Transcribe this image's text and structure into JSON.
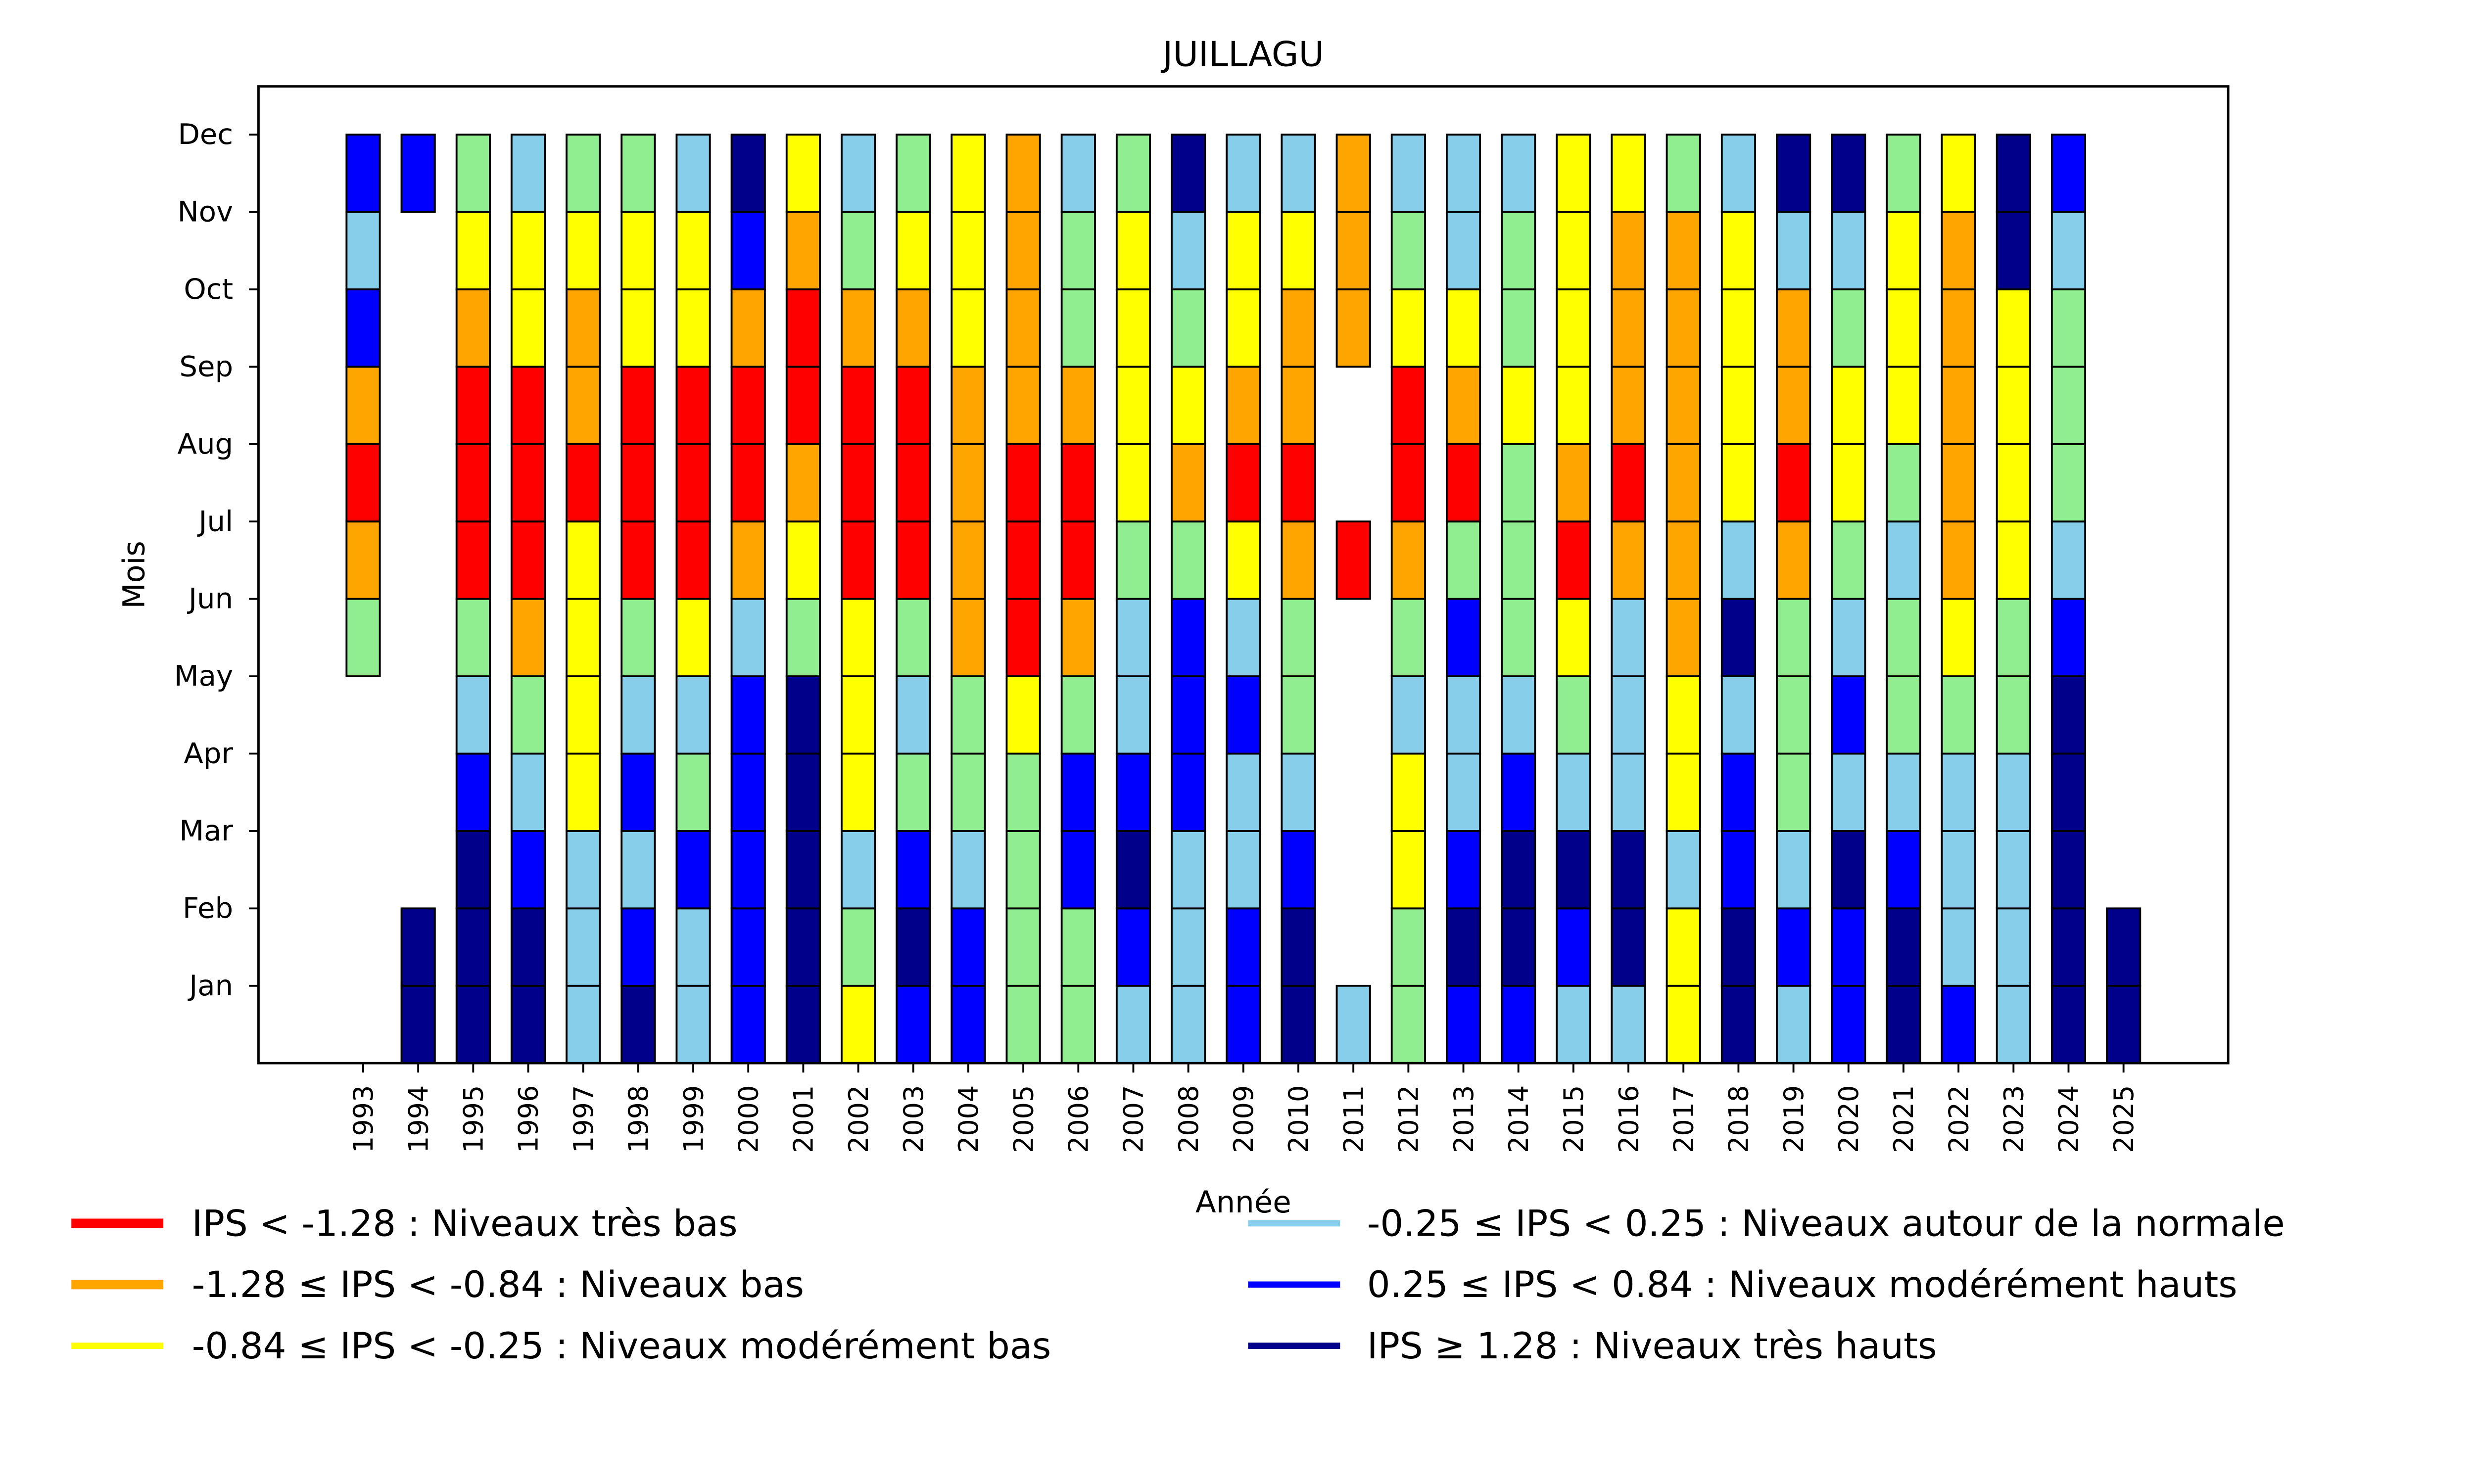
{
  "chart_data": {
    "type": "heatmap",
    "title": "JUILLAGU",
    "xlabel": "Année",
    "ylabel": "Mois",
    "months": [
      "Jan",
      "Feb",
      "Mar",
      "Apr",
      "May",
      "Jun",
      "Jul",
      "Aug",
      "Sep",
      "Oct",
      "Nov",
      "Dec"
    ],
    "years": [
      "1993",
      "1994",
      "1995",
      "1996",
      "1997",
      "1998",
      "1999",
      "2000",
      "2001",
      "2002",
      "2003",
      "2004",
      "2005",
      "2006",
      "2007",
      "2008",
      "2009",
      "2010",
      "2011",
      "2012",
      "2013",
      "2014",
      "2015",
      "2016",
      "2017",
      "2018",
      "2019",
      "2020",
      "2021",
      "2022",
      "2023",
      "2024",
      "2025"
    ],
    "categories": {
      "R": {
        "color": "#ff0000",
        "label": "IPS < -1.28 : Niveaux très bas"
      },
      "O": {
        "color": "#ffa500",
        "label": "-1.28 ≤ IPS < -0.84 : Niveaux bas"
      },
      "Y": {
        "color": "#ffff00",
        "label": "-0.84 ≤ IPS < -0.25 : Niveaux modérément bas"
      },
      "L": {
        "color": "#87ceeb",
        "label": "-0.25 ≤ IPS < 0.25 : Niveaux autour de la normale"
      },
      "G": {
        "color": "#90ee90",
        "label": ""
      },
      "B": {
        "color": "#0000ff",
        "label": "0.25 ≤ IPS < 0.84 : Niveaux modérément hauts"
      },
      "N": {
        "color": "#00008b",
        "label": "IPS ≥ 1.28 : Niveaux très hauts"
      }
    },
    "legend": {
      "placement": "bottom",
      "left": [
        {
          "key": "R",
          "label": "IPS < -1.28 : Niveaux très bas",
          "color": "#ff0000"
        },
        {
          "key": "O",
          "label": "-1.28 ≤ IPS < -0.84 : Niveaux bas",
          "color": "#ffa500"
        },
        {
          "key": "Y",
          "label": "-0.84 ≤ IPS < -0.25 : Niveaux modérément bas",
          "color": "#ffff00"
        }
      ],
      "right": [
        {
          "key": "L",
          "label": "-0.25 ≤ IPS < 0.25 : Niveaux autour de la normale",
          "color": "#87ceeb"
        },
        {
          "key": "B",
          "label": "0.25 ≤ IPS < 0.84 : Niveaux modérément hauts",
          "color": "#0000ff"
        },
        {
          "key": "N",
          "label": "IPS ≥ 1.28 : Niveaux très hauts",
          "color": "#00008b"
        }
      ]
    },
    "values_note": "Per year, 12 entries Jan..Dec; null = no data",
    "values": {
      "1993": [
        null,
        null,
        null,
        null,
        null,
        "G",
        "O",
        "R",
        "O",
        "B",
        "L",
        "B"
      ],
      "1994": [
        "N",
        "N",
        null,
        null,
        null,
        null,
        null,
        null,
        null,
        null,
        null,
        "B"
      ],
      "1995": [
        "N",
        "N",
        "N",
        "B",
        "L",
        "G",
        "R",
        "R",
        "R",
        "O",
        "Y",
        "G"
      ],
      "1996": [
        "N",
        "N",
        "B",
        "L",
        "G",
        "O",
        "R",
        "R",
        "R",
        "Y",
        "Y",
        "L"
      ],
      "1997": [
        "L",
        "L",
        "L",
        "Y",
        "Y",
        "Y",
        "Y",
        "R",
        "O",
        "O",
        "Y",
        "G"
      ],
      "1998": [
        "N",
        "B",
        "L",
        "B",
        "L",
        "G",
        "R",
        "R",
        "R",
        "Y",
        "Y",
        "G"
      ],
      "1999": [
        "L",
        "L",
        "B",
        "G",
        "L",
        "Y",
        "R",
        "R",
        "R",
        "Y",
        "Y",
        "L"
      ],
      "2000": [
        "B",
        "B",
        "B",
        "B",
        "B",
        "L",
        "O",
        "R",
        "R",
        "O",
        "B",
        "N"
      ],
      "2001": [
        "N",
        "N",
        "N",
        "N",
        "N",
        "G",
        "Y",
        "O",
        "R",
        "R",
        "O",
        "Y"
      ],
      "2002": [
        "Y",
        "G",
        "L",
        "Y",
        "Y",
        "Y",
        "R",
        "R",
        "R",
        "O",
        "G",
        "L"
      ],
      "2003": [
        "B",
        "N",
        "B",
        "G",
        "L",
        "G",
        "R",
        "R",
        "R",
        "O",
        "Y",
        "G"
      ],
      "2004": [
        "B",
        "B",
        "L",
        "G",
        "G",
        "O",
        "O",
        "O",
        "O",
        "Y",
        "Y",
        "Y"
      ],
      "2005": [
        "G",
        "G",
        "G",
        "G",
        "Y",
        "R",
        "R",
        "R",
        "O",
        "O",
        "O",
        "O"
      ],
      "2006": [
        "G",
        "G",
        "B",
        "B",
        "G",
        "O",
        "R",
        "R",
        "O",
        "G",
        "G",
        "L"
      ],
      "2007": [
        "L",
        "B",
        "N",
        "B",
        "L",
        "L",
        "G",
        "Y",
        "Y",
        "Y",
        "Y",
        "G"
      ],
      "2008": [
        "L",
        "L",
        "L",
        "B",
        "B",
        "B",
        "G",
        "O",
        "Y",
        "G",
        "L",
        "N"
      ],
      "2009": [
        "B",
        "B",
        "L",
        "L",
        "B",
        "L",
        "Y",
        "R",
        "O",
        "Y",
        "Y",
        "L"
      ],
      "2010": [
        "N",
        "N",
        "B",
        "L",
        "G",
        "G",
        "O",
        "R",
        "O",
        "O",
        "Y",
        "L"
      ],
      "2011": [
        "L",
        null,
        null,
        null,
        null,
        null,
        "R",
        null,
        null,
        "O",
        "O",
        "O"
      ],
      "2012": [
        "G",
        "G",
        "Y",
        "Y",
        "L",
        "G",
        "O",
        "R",
        "R",
        "Y",
        "G",
        "L"
      ],
      "2013": [
        "B",
        "N",
        "B",
        "L",
        "L",
        "B",
        "G",
        "R",
        "O",
        "Y",
        "L",
        "L"
      ],
      "2014": [
        "B",
        "N",
        "N",
        "B",
        "L",
        "G",
        "G",
        "G",
        "Y",
        "G",
        "G",
        "L"
      ],
      "2015": [
        "L",
        "B",
        "N",
        "L",
        "G",
        "Y",
        "R",
        "O",
        "Y",
        "Y",
        "Y",
        "Y"
      ],
      "2016": [
        "L",
        "N",
        "N",
        "L",
        "L",
        "L",
        "O",
        "R",
        "O",
        "O",
        "O",
        "Y"
      ],
      "2017": [
        "Y",
        "Y",
        "L",
        "Y",
        "Y",
        "O",
        "O",
        "O",
        "O",
        "O",
        "O",
        "G"
      ],
      "2018": [
        "N",
        "N",
        "B",
        "B",
        "L",
        "N",
        "L",
        "Y",
        "Y",
        "Y",
        "Y",
        "L"
      ],
      "2019": [
        "L",
        "B",
        "L",
        "G",
        "G",
        "G",
        "O",
        "R",
        "O",
        "O",
        "L",
        "N"
      ],
      "2020": [
        "B",
        "B",
        "N",
        "L",
        "B",
        "L",
        "G",
        "Y",
        "Y",
        "G",
        "L",
        "N"
      ],
      "2021": [
        "N",
        "N",
        "B",
        "L",
        "G",
        "G",
        "L",
        "G",
        "Y",
        "Y",
        "Y",
        "G"
      ],
      "2022": [
        "B",
        "L",
        "L",
        "L",
        "G",
        "Y",
        "O",
        "O",
        "O",
        "O",
        "O",
        "Y"
      ],
      "2023": [
        "L",
        "L",
        "L",
        "L",
        "G",
        "G",
        "Y",
        "Y",
        "Y",
        "Y",
        "N",
        "N"
      ],
      "2024": [
        "N",
        "N",
        "N",
        "N",
        "N",
        "B",
        "L",
        "G",
        "G",
        "G",
        "L",
        "B"
      ],
      "2025": [
        "N",
        "N",
        null,
        null,
        null,
        null,
        null,
        null,
        null,
        null,
        null,
        null
      ]
    },
    "grid": false
  }
}
